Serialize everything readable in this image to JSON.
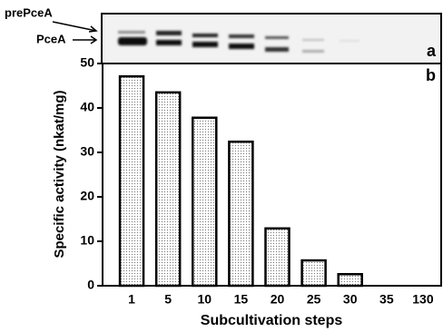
{
  "gel": {
    "labels": [
      "prePceA",
      "PceA"
    ],
    "panel_label": "a"
  },
  "chart_data": {
    "type": "bar",
    "panel_label": "b",
    "x_label": "Subcultivation steps",
    "y_label": "Specific activity (nkat/mg)",
    "categories": [
      "1",
      "5",
      "10",
      "15",
      "20",
      "25",
      "30",
      "35",
      "130"
    ],
    "values": [
      47.1,
      43.5,
      37.8,
      32.4,
      12.9,
      5.7,
      2.6,
      0,
      0
    ],
    "color": "#000000",
    "ylim": [
      0,
      50
    ],
    "yticks": [
      0,
      10,
      20,
      30,
      40,
      50
    ]
  }
}
